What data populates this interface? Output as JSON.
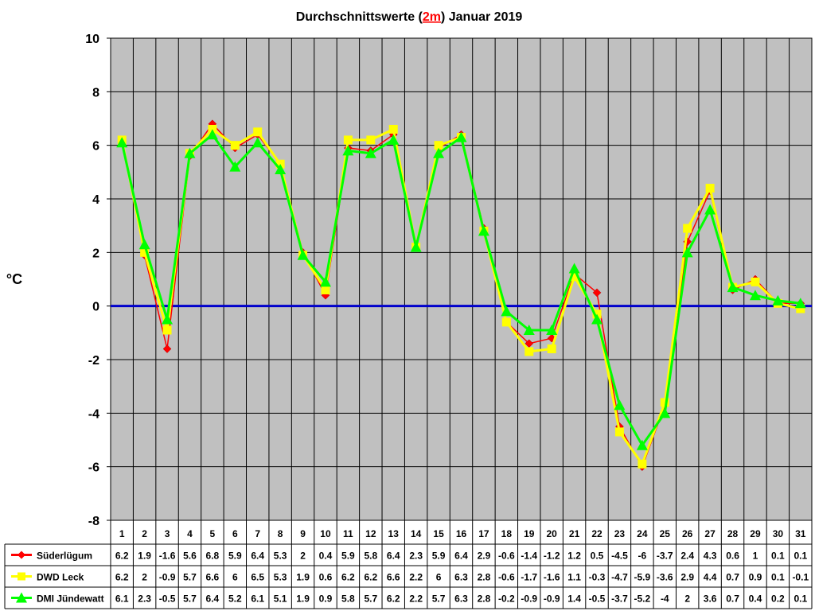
{
  "chart_data": {
    "type": "line",
    "title": {
      "before": "Durchschnittswerte (",
      "highlight": "2m",
      "after": ") Januar 2019"
    },
    "ylabel": "°C",
    "xlabel": "",
    "ylim": [
      -8,
      10
    ],
    "yticks": [
      "10",
      "8",
      "6",
      "4",
      "2",
      "0",
      "-2",
      "-4",
      "-6",
      "-8"
    ],
    "grid": true,
    "zero_line_color": "#0000cc",
    "plot_background": "#c0c0c0",
    "categories": [
      "1",
      "2",
      "3",
      "4",
      "5",
      "6",
      "7",
      "8",
      "9",
      "10",
      "11",
      "12",
      "13",
      "14",
      "15",
      "16",
      "17",
      "18",
      "19",
      "20",
      "21",
      "22",
      "23",
      "24",
      "25",
      "26",
      "27",
      "28",
      "29",
      "30",
      "31"
    ],
    "series": [
      {
        "name": "Süderlügum",
        "color": "#ff0000",
        "marker_color": "#ff0000",
        "marker": "diamond",
        "values": [
          6.2,
          1.9,
          -1.6,
          5.6,
          6.8,
          5.9,
          6.4,
          5.3,
          2,
          0.4,
          5.9,
          5.8,
          6.4,
          2.3,
          5.9,
          6.4,
          2.9,
          -0.6,
          -1.4,
          -1.2,
          1.2,
          0.5,
          -4.5,
          -6,
          -3.7,
          2.4,
          4.3,
          0.6,
          1,
          0.1,
          0.1
        ],
        "labels": [
          "6.2",
          "1.9",
          "-1.6",
          "5.6",
          "6.8",
          "5.9",
          "6.4",
          "5.3",
          "2",
          "0.4",
          "5.9",
          "5.8",
          "6.4",
          "2.3",
          "5.9",
          "6.4",
          "2.9",
          "-0.6",
          "-1.4",
          "-1.2",
          "1.2",
          "0.5",
          "-4.5",
          "-6",
          "-3.7",
          "2.4",
          "4.3",
          "0.6",
          "1",
          "0.1",
          "0.1"
        ]
      },
      {
        "name": "DWD Leck",
        "color": "#ffff00",
        "marker_color": "#ffff00",
        "marker": "square",
        "values": [
          6.2,
          2,
          -0.9,
          5.7,
          6.6,
          6,
          6.5,
          5.3,
          1.9,
          0.6,
          6.2,
          6.2,
          6.6,
          2.2,
          6,
          6.3,
          2.8,
          -0.6,
          -1.7,
          -1.6,
          1.1,
          -0.3,
          -4.7,
          -5.9,
          -3.6,
          2.9,
          4.4,
          0.7,
          0.9,
          0.1,
          -0.1
        ],
        "labels": [
          "6.2",
          "2",
          "-0.9",
          "5.7",
          "6.6",
          "6",
          "6.5",
          "5.3",
          "1.9",
          "0.6",
          "6.2",
          "6.2",
          "6.6",
          "2.2",
          "6",
          "6.3",
          "2.8",
          "-0.6",
          "-1.7",
          "-1.6",
          "1.1",
          "-0.3",
          "-4.7",
          "-5.9",
          "-3.6",
          "2.9",
          "4.4",
          "0.7",
          "0.9",
          "0.1",
          "-0.1"
        ]
      },
      {
        "name": "DMI Jündewatt",
        "color": "#00ff00",
        "marker_color": "#00ff00",
        "marker": "triangle",
        "values": [
          6.1,
          2.3,
          -0.5,
          5.7,
          6.4,
          5.2,
          6.1,
          5.1,
          1.9,
          0.9,
          5.8,
          5.7,
          6.2,
          2.2,
          5.7,
          6.3,
          2.8,
          -0.2,
          -0.9,
          -0.9,
          1.4,
          -0.5,
          -3.7,
          -5.2,
          -4,
          2,
          3.6,
          0.7,
          0.4,
          0.2,
          0.1
        ],
        "labels": [
          "6.1",
          "2.3",
          "-0.5",
          "5.7",
          "6.4",
          "5.2",
          "6.1",
          "5.1",
          "1.9",
          "0.9",
          "5.8",
          "5.7",
          "6.2",
          "2.2",
          "5.7",
          "6.3",
          "2.8",
          "-0.2",
          "-0.9",
          "-0.9",
          "1.4",
          "-0.5",
          "-3.7",
          "-5.2",
          "-4",
          "2",
          "3.6",
          "0.7",
          "0.4",
          "0.2",
          "0.1"
        ]
      }
    ]
  }
}
